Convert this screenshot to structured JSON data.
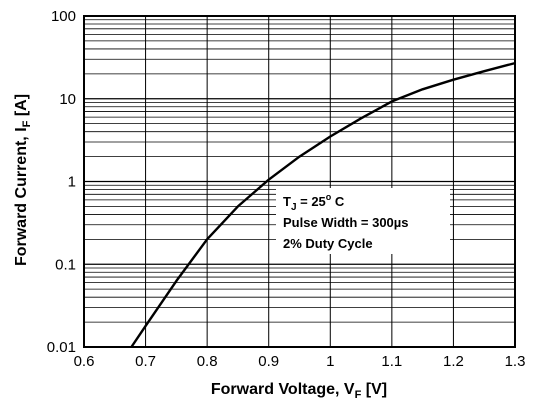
{
  "chart_data": {
    "type": "line",
    "xlabel": {
      "main": "Forward Voltage, V",
      "sub": "F",
      "unit": " [V]"
    },
    "ylabel": {
      "main": "Forward Current, I",
      "sub": "F",
      "unit": " [A]"
    },
    "xlim": [
      0.6,
      1.3
    ],
    "ylim": [
      0.01,
      100
    ],
    "yscale": "log",
    "grid": true,
    "x_ticks": [
      "0.6",
      "0.7",
      "0.8",
      "0.9",
      "1",
      "1.1",
      "1.2",
      "1.3"
    ],
    "y_ticks": [
      "0.01",
      "0.1",
      "1",
      "10",
      "100"
    ],
    "series": [
      {
        "x": [
          0.677,
          0.7,
          0.75,
          0.8,
          0.85,
          0.9,
          0.95,
          1.0,
          1.05,
          1.1,
          1.15,
          1.2,
          1.25,
          1.3
        ],
        "y": [
          0.01,
          0.018,
          0.063,
          0.2,
          0.5,
          1.05,
          2.0,
          3.5,
          5.8,
          9.3,
          13.0,
          17.0,
          21.5,
          27.0
        ]
      }
    ],
    "annotation": {
      "tj_main": "T",
      "tj_sub": "J",
      "tj_rest": " = 25",
      "tj_sup": "o",
      "tj_unit": " C",
      "pulse": "Pulse Width = 300µs",
      "duty": "2% Duty Cycle"
    }
  }
}
